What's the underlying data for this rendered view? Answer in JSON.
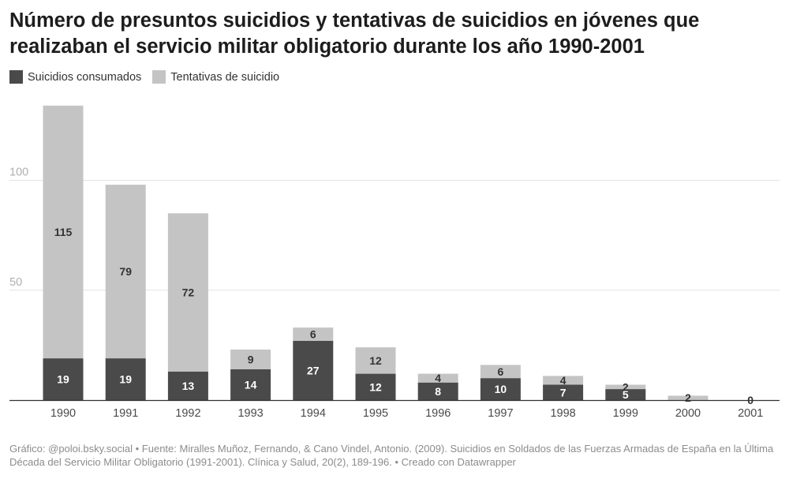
{
  "header": {
    "title": "Número de presuntos suicidios y tentativas de suicidios en jóvenes que realizaban el servicio militar obligatorio durante los año 1990-2001"
  },
  "legend": {
    "items": [
      {
        "label": "Suicidios consumados",
        "color": "#4a4a4a"
      },
      {
        "label": "Tentativas de suicidio",
        "color": "#c4c4c4"
      }
    ]
  },
  "footer": {
    "text": "Gráfico: @poloi.bsky.social • Fuente: Miralles Muñoz, Fernando, & Cano Vindel, Antonio. (2009). Suicidios en Soldados de las Fuerzas Armadas de España en la Última Década del Servicio Militar Obligatorio (1991-2001). Clínica y Salud, 20(2), 189-196. • Creado con Datawrapper"
  },
  "chart_data": {
    "type": "bar",
    "stacked": true,
    "categories": [
      "1990",
      "1991",
      "1992",
      "1993",
      "1994",
      "1995",
      "1996",
      "1997",
      "1998",
      "1999",
      "2000",
      "2001"
    ],
    "series": [
      {
        "name": "Suicidios consumados",
        "color": "#4a4a4a",
        "values": [
          19,
          19,
          13,
          14,
          27,
          12,
          8,
          10,
          7,
          5,
          0,
          0
        ]
      },
      {
        "name": "Tentativas de suicidio",
        "color": "#c4c4c4",
        "values": [
          115,
          79,
          72,
          9,
          6,
          12,
          4,
          6,
          4,
          2,
          2,
          0
        ]
      }
    ],
    "data_labels": [
      [
        "19",
        "19",
        "13",
        "14",
        "27",
        "12",
        "8",
        "10",
        "7",
        "5",
        "",
        "0"
      ],
      [
        "115",
        "79",
        "72",
        "9",
        "6",
        "12",
        "4",
        "6",
        "4",
        "2",
        "2",
        ""
      ]
    ],
    "yticks": [
      50,
      100
    ],
    "ylim": [
      0,
      134
    ],
    "grid": true,
    "legend_position": "top-left"
  }
}
